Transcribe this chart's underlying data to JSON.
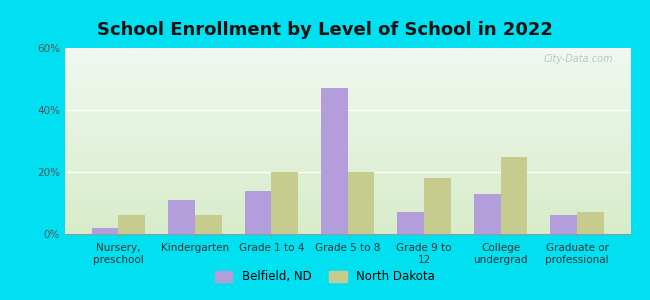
{
  "title": "School Enrollment by Level of School in 2022",
  "categories": [
    "Nursery,\npreschool",
    "Kindergarten",
    "Grade 1 to 4",
    "Grade 5 to 8",
    "Grade 9 to\n12",
    "College\nundergrad",
    "Graduate or\nprofessional"
  ],
  "belfield": [
    2,
    11,
    14,
    47,
    7,
    13,
    6
  ],
  "north_dakota": [
    6,
    6,
    20,
    20,
    18,
    25,
    7
  ],
  "belfield_color": "#b39ddb",
  "nd_color": "#c5cc8e",
  "background_outer": "#00e0f0",
  "title_fontsize": 13,
  "tick_fontsize": 7.5,
  "legend_label_belfield": "Belfield, ND",
  "legend_label_nd": "North Dakota",
  "ylim": [
    0,
    60
  ],
  "yticks": [
    0,
    20,
    40,
    60
  ],
  "ytick_labels": [
    "0%",
    "20%",
    "40%",
    "60%"
  ],
  "watermark": "City-Data.com",
  "bar_width": 0.35,
  "grad_top": "#f0f8f0",
  "grad_bottom": "#d8ecca"
}
